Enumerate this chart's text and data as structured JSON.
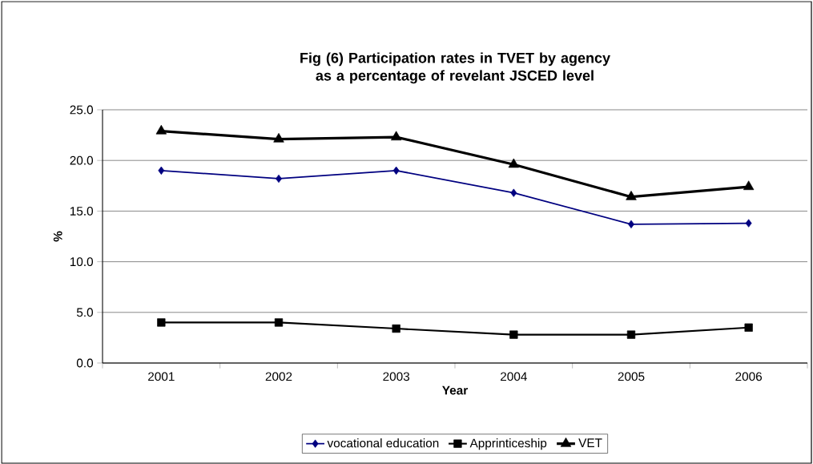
{
  "chart_data": {
    "type": "line",
    "title": "Fig (6) Participation rates in TVET by agency as a percentage of revelant JSCED level",
    "xlabel": "Year",
    "ylabel": "%",
    "categories": [
      "2001",
      "2002",
      "2003",
      "2004",
      "2005",
      "2006"
    ],
    "series": [
      {
        "name": "vocational education",
        "color": "#000080",
        "marker": "diamond",
        "values": [
          19.0,
          18.2,
          19.0,
          16.8,
          13.7,
          13.8
        ]
      },
      {
        "name": "Apprinticeship",
        "color": "#000000",
        "marker": "square",
        "values": [
          4.0,
          4.0,
          3.4,
          2.8,
          2.8,
          3.5
        ]
      },
      {
        "name": "VET",
        "color": "#000000",
        "marker": "triangle",
        "values": [
          22.9,
          22.1,
          22.3,
          19.6,
          16.4,
          17.4
        ]
      }
    ],
    "ylim": [
      0,
      25
    ],
    "yticks": [
      {
        "value": 0,
        "label": "0.0"
      },
      {
        "value": 5,
        "label": "5.0"
      },
      {
        "value": 10,
        "label": "10.0"
      },
      {
        "value": 15,
        "label": "15.0"
      },
      {
        "value": 20,
        "label": "20.0"
      },
      {
        "value": 25,
        "label": "25.0"
      }
    ],
    "grid": "y",
    "legend": "bottom",
    "line_style": "solid"
  }
}
